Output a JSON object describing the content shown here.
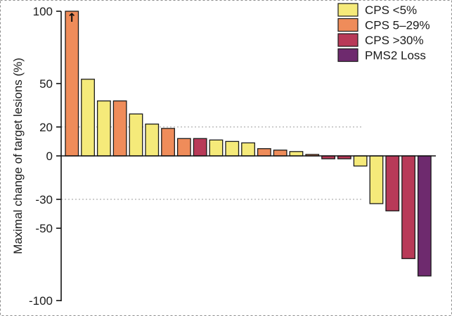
{
  "chart_data": {
    "type": "bar",
    "ylabel": "Maximal change of target lesions (%)",
    "ylim": [
      -100,
      100
    ],
    "yticks": [
      100,
      50,
      20,
      0,
      -30,
      -50,
      -100
    ],
    "reference_lines": [
      20,
      -30
    ],
    "grid": false,
    "legend_position": "top-right",
    "annotation": "↑",
    "colors": {
      "CPS <5%": "#f5ea7a",
      "CPS 5–29%": "#ef8c5a",
      "CPS >30%": "#b83a58",
      "PMS2 Loss": "#6e2a6e"
    },
    "series": [
      {
        "name": "CPS  <5%",
        "color": "#f5ea7a"
      },
      {
        "name": "CPS  5–29%",
        "color": "#ef8c5a"
      },
      {
        "name": "CPS  >30%",
        "color": "#b83a58"
      },
      {
        "name": "PMS2  Loss",
        "color": "#6e2a6e"
      }
    ],
    "bars": [
      {
        "value": 100,
        "group": "CPS 5–29%"
      },
      {
        "value": 53,
        "group": "CPS <5%"
      },
      {
        "value": 38,
        "group": "CPS <5%"
      },
      {
        "value": 38,
        "group": "CPS 5–29%"
      },
      {
        "value": 29,
        "group": "CPS <5%"
      },
      {
        "value": 22,
        "group": "CPS <5%"
      },
      {
        "value": 19,
        "group": "CPS 5–29%"
      },
      {
        "value": 12,
        "group": "CPS 5–29%"
      },
      {
        "value": 12,
        "group": "CPS >30%"
      },
      {
        "value": 11,
        "group": "CPS <5%"
      },
      {
        "value": 10,
        "group": "CPS <5%"
      },
      {
        "value": 9,
        "group": "CPS <5%"
      },
      {
        "value": 5,
        "group": "CPS 5–29%"
      },
      {
        "value": 4,
        "group": "CPS 5–29%"
      },
      {
        "value": 3,
        "group": "CPS <5%"
      },
      {
        "value": 1,
        "group": "CPS 5–29%"
      },
      {
        "value": -2,
        "group": "CPS >30%"
      },
      {
        "value": -2,
        "group": "CPS >30%"
      },
      {
        "value": -7,
        "group": "CPS <5%"
      },
      {
        "value": -33,
        "group": "CPS <5%"
      },
      {
        "value": -38,
        "group": "CPS >30%"
      },
      {
        "value": -71,
        "group": "CPS >30%"
      },
      {
        "value": -83,
        "group": "PMS2 Loss"
      }
    ]
  }
}
